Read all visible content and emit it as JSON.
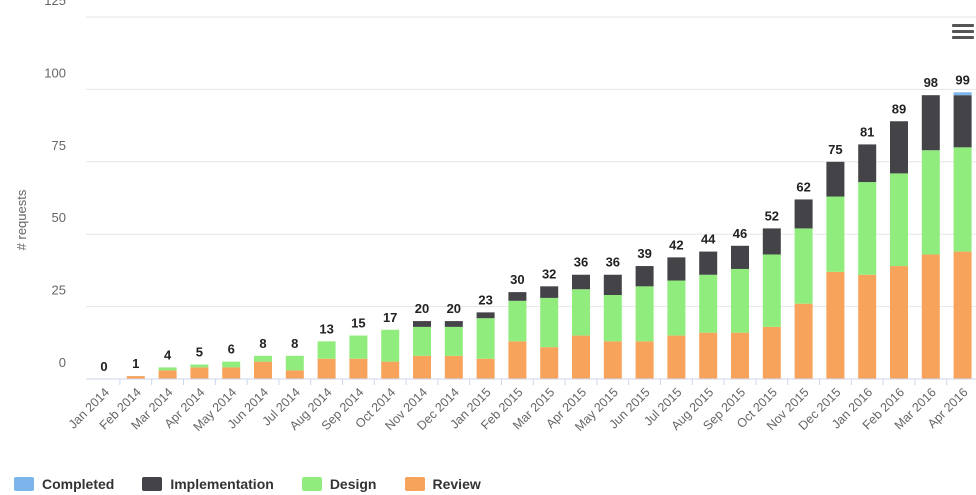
{
  "chart_data": {
    "type": "bar",
    "stacked": true,
    "ylabel": "# requests",
    "ylim": [
      0,
      125
    ],
    "yticks": [
      0,
      25,
      50,
      75,
      100,
      125
    ],
    "grid": true,
    "legend_position": "bottom-left",
    "categories": [
      "Jan 2014",
      "Feb 2014",
      "Mar 2014",
      "Apr 2014",
      "May 2014",
      "Jun 2014",
      "Jul 2014",
      "Aug 2014",
      "Sep 2014",
      "Oct 2014",
      "Nov 2014",
      "Dec 2014",
      "Jan 2015",
      "Feb 2015",
      "Mar 2015",
      "Apr 2015",
      "May 2015",
      "Jun 2015",
      "Jul 2015",
      "Aug 2015",
      "Sep 2015",
      "Oct 2015",
      "Nov 2015",
      "Dec 2015",
      "Jan 2016",
      "Feb 2016",
      "Mar 2016",
      "Apr 2016"
    ],
    "totals": [
      0,
      1,
      4,
      5,
      6,
      8,
      8,
      13,
      15,
      17,
      20,
      20,
      23,
      30,
      32,
      36,
      36,
      39,
      42,
      44,
      46,
      52,
      62,
      75,
      81,
      89,
      98,
      99
    ],
    "series": [
      {
        "name": "Review",
        "color": "#f7a35c",
        "values": [
          0,
          1,
          3,
          4,
          4,
          6,
          3,
          7,
          7,
          6,
          8,
          8,
          7,
          13,
          11,
          15,
          13,
          13,
          15,
          16,
          16,
          18,
          26,
          37,
          36,
          39,
          43,
          44
        ]
      },
      {
        "name": "Design",
        "color": "#90ed7d",
        "values": [
          0,
          0,
          1,
          1,
          2,
          2,
          5,
          6,
          8,
          11,
          10,
          10,
          14,
          14,
          17,
          16,
          16,
          19,
          19,
          20,
          22,
          25,
          26,
          26,
          32,
          32,
          36,
          36
        ]
      },
      {
        "name": "Implementation",
        "color": "#434348",
        "values": [
          0,
          0,
          0,
          0,
          0,
          0,
          0,
          0,
          0,
          0,
          2,
          2,
          2,
          3,
          4,
          5,
          7,
          7,
          8,
          8,
          8,
          9,
          10,
          12,
          13,
          18,
          19,
          18
        ]
      },
      {
        "name": "Completed",
        "color": "#7cb5ec",
        "values": [
          0,
          0,
          0,
          0,
          0,
          0,
          0,
          0,
          0,
          0,
          0,
          0,
          0,
          0,
          0,
          0,
          0,
          0,
          0,
          0,
          0,
          0,
          0,
          0,
          0,
          0,
          0,
          1
        ]
      }
    ],
    "legend_order": [
      "Completed",
      "Implementation",
      "Design",
      "Review"
    ]
  },
  "ui": {
    "menu_icon": "hamburger-menu-icon"
  }
}
